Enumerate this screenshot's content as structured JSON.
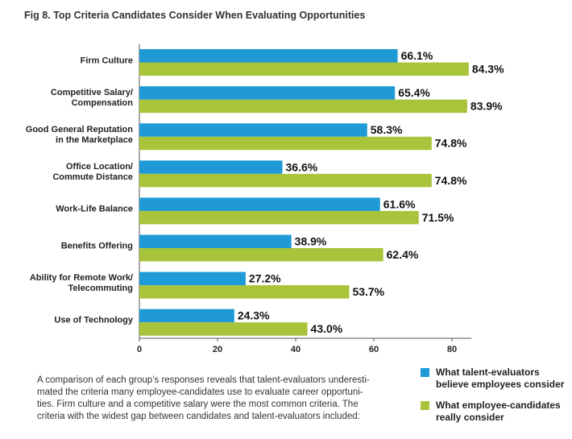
{
  "chart_data": {
    "type": "hbar",
    "title": "Fig 8. Top Criteria Candidates Consider When Evaluating Opportunities",
    "categories": [
      "Firm Culture",
      "Competitive Salary/\nCompensation",
      "Good General Reputation\nin the Marketplace",
      "Office Location/\nCommute Distance",
      "Work-Life Balance",
      "Benefits Offering",
      "Ability for Remote Work/\nTelecommuting",
      "Use of Technology"
    ],
    "series": [
      {
        "name": "What talent-evaluators\nbelieve employees consider",
        "color": "#1f9ad6",
        "values": [
          66.1,
          65.4,
          58.3,
          36.6,
          61.6,
          38.9,
          27.2,
          24.3
        ],
        "value_labels": [
          "66.1%",
          "65.4%",
          "58.3%",
          "36.6%",
          "61.6%",
          "38.9%",
          "27.2%",
          "24.3%"
        ]
      },
      {
        "name": "What employee-candidates\nreally consider",
        "color": "#a8c43b",
        "values": [
          84.3,
          83.9,
          74.8,
          74.8,
          71.5,
          62.4,
          53.7,
          43.0
        ],
        "value_labels": [
          "84.3%",
          "83.9%",
          "74.8%",
          "74.8%",
          "71.5%",
          "62.4%",
          "53.7%",
          "43.0%"
        ]
      }
    ],
    "xlim": [
      0,
      85
    ],
    "xticks": [
      0,
      20,
      40,
      60,
      80
    ],
    "note": "A comparison of each group’s responses reveals that talent-evaluators underesti-\nmated the criteria many employee-candidates use to evaluate career opportuni-\nties. Firm culture and a competitive salary were the most common criteria. The\ncriteria with the widest gap between candidates and talent-evaluators included:"
  }
}
